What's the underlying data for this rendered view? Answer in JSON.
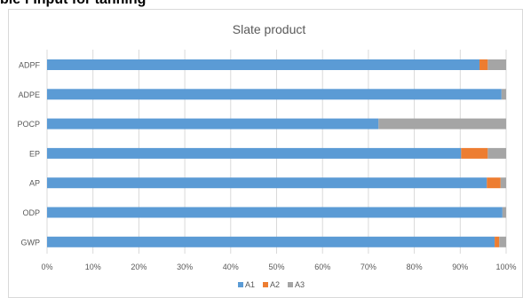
{
  "top_fragment": "ble f Input for tanning",
  "chart_data": {
    "type": "bar",
    "orientation": "horizontal",
    "stacked": true,
    "percent": true,
    "title": "Slate product",
    "categories": [
      "ADPF",
      "ADPE",
      "POCP",
      "EP",
      "AP",
      "ODP",
      "GWP"
    ],
    "series": [
      {
        "name": "A1",
        "color": "#5b9bd5",
        "values": [
          94.2,
          99.0,
          72.2,
          90.2,
          95.8,
          99.2,
          97.5
        ]
      },
      {
        "name": "A2",
        "color": "#ed7d31",
        "values": [
          1.8,
          0.0,
          0.0,
          5.8,
          3.0,
          0.0,
          1.0
        ]
      },
      {
        "name": "A3",
        "color": "#a5a5a5",
        "values": [
          4.0,
          1.0,
          27.8,
          4.0,
          1.2,
          0.8,
          1.5
        ]
      }
    ],
    "x_ticks": [
      "0%",
      "10%",
      "20%",
      "30%",
      "40%",
      "50%",
      "60%",
      "70%",
      "80%",
      "90%",
      "100%"
    ],
    "xlim": [
      0,
      100
    ],
    "grid": true,
    "legend_position": "bottom"
  }
}
